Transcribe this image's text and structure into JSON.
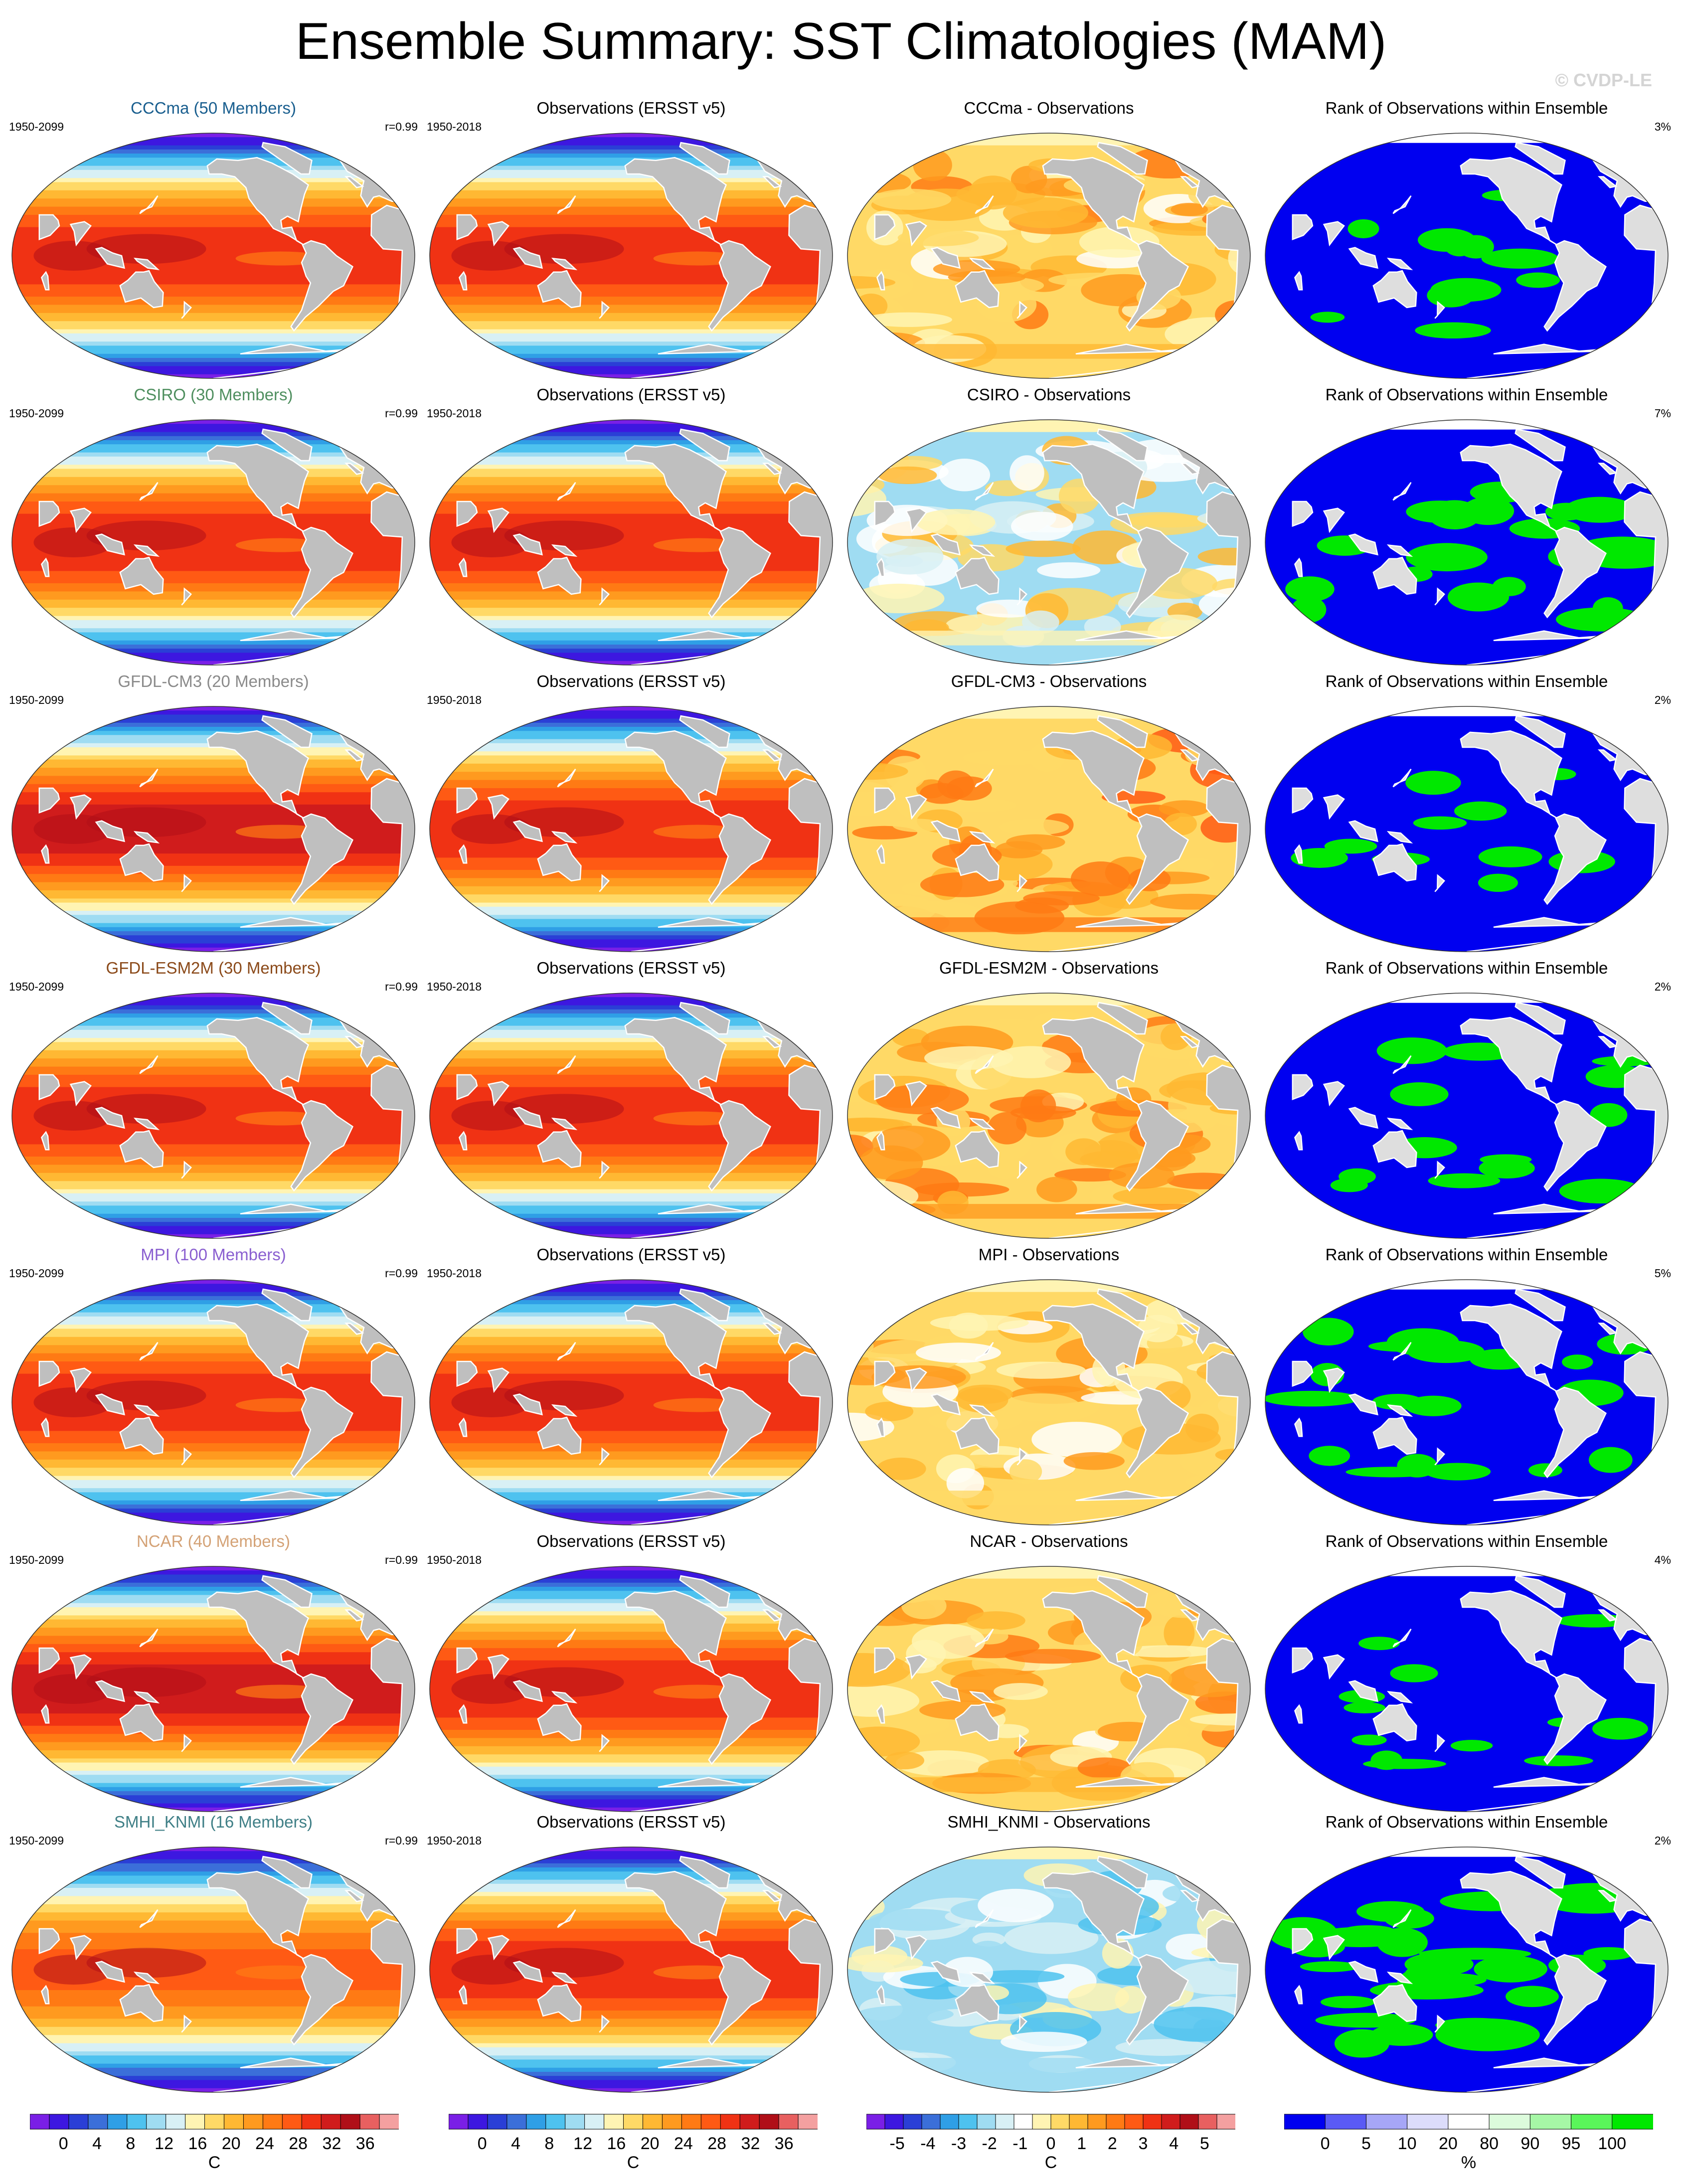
{
  "page": {
    "title": "Ensemble Summary: SST Climatologies (MAM)",
    "credit": "© CVDP-LE"
  },
  "colors": {
    "land": "#bfbfbf",
    "land_light": "#dedede",
    "rank_low": "#0000f0",
    "rank_high": "#00e800"
  },
  "chart_data": [
    {
      "type": "heatmap",
      "description_kind": "model ensemble-mean SST climatology maps",
      "rows": [
        {
          "title": "CCCma (50 Members)",
          "title_color": "#1a5f8f",
          "period": "1950-2099",
          "pattern_corr": "r=0.99",
          "warmth": 1.0
        },
        {
          "title": "CSIRO (30 Members)",
          "title_color": "#4f8f5f",
          "period": "1950-2099",
          "pattern_corr": "r=0.99",
          "warmth": 1.0
        },
        {
          "title": "GFDL-CM3 (20 Members)",
          "title_color": "#8a8a8a",
          "period": "1950-2099",
          "pattern_corr": "",
          "warmth": 1.05
        },
        {
          "title": "GFDL-ESM2M (30 Members)",
          "title_color": "#8b4a1a",
          "period": "1950-2099",
          "pattern_corr": "r=0.99",
          "warmth": 1.0
        },
        {
          "title": "MPI (100 Members)",
          "title_color": "#8a5fd0",
          "period": "1950-2099",
          "pattern_corr": "r=0.99",
          "warmth": 1.0
        },
        {
          "title": "NCAR (40 Members)",
          "title_color": "#d4a276",
          "period": "1950-2099",
          "pattern_corr": "r=0.99",
          "warmth": 1.05
        },
        {
          "title": "SMHI_KNMI (16 Members)",
          "title_color": "#3f7f86",
          "period": "1950-2099",
          "pattern_corr": "r=0.99",
          "warmth": 0.9
        }
      ],
      "units": "C",
      "levels": [
        0,
        4,
        8,
        12,
        16,
        20,
        24,
        28,
        32,
        36
      ]
    },
    {
      "type": "heatmap",
      "description_kind": "observed SST climatology maps",
      "title": "Observations (ERSST v5)",
      "period": "1950-2018",
      "units": "C",
      "levels": [
        0,
        4,
        8,
        12,
        16,
        20,
        24,
        28,
        32,
        36
      ]
    },
    {
      "type": "heatmap",
      "description_kind": "model minus observations difference maps",
      "rows": [
        {
          "title": "CCCma - Observations",
          "mean_bias": 0.6
        },
        {
          "title": "CSIRO - Observations",
          "mean_bias": -0.3
        },
        {
          "title": "GFDL-CM3 - Observations",
          "mean_bias": 1.2
        },
        {
          "title": "GFDL-ESM2M - Observations",
          "mean_bias": 0.8
        },
        {
          "title": "MPI - Observations",
          "mean_bias": 0.2
        },
        {
          "title": "NCAR - Observations",
          "mean_bias": 0.5
        },
        {
          "title": "SMHI_KNMI - Observations",
          "mean_bias": -1.2
        }
      ],
      "units": "C",
      "levels": [
        -5,
        -4,
        -3,
        -2,
        -1,
        0,
        1,
        2,
        3,
        4,
        5
      ]
    },
    {
      "type": "heatmap",
      "description_kind": "rank of observations within ensemble maps",
      "title": "Rank of Observations within Ensemble",
      "rows": [
        {
          "pct_label": "3%",
          "green_fraction": 0.08
        },
        {
          "pct_label": "7%",
          "green_fraction": 0.3
        },
        {
          "pct_label": "2%",
          "green_fraction": 0.06
        },
        {
          "pct_label": "2%",
          "green_fraction": 0.14
        },
        {
          "pct_label": "5%",
          "green_fraction": 0.24
        },
        {
          "pct_label": "4%",
          "green_fraction": 0.1
        },
        {
          "pct_label": "2%",
          "green_fraction": 0.45
        }
      ],
      "units": "%",
      "levels": [
        "0",
        "5",
        "10",
        "20",
        "80",
        "90",
        "95",
        "100"
      ]
    }
  ],
  "colorbars": [
    {
      "labels": [
        "0",
        "4",
        "8",
        "12",
        "16",
        "20",
        "24",
        "28",
        "32",
        "36"
      ],
      "unit": "C",
      "colors": [
        "#7a1fe6",
        "#3d17e0",
        "#2a3fd6",
        "#3b6fd9",
        "#2f9fe6",
        "#4ec2ef",
        "#9fdcf2",
        "#d8f0f5",
        "#fff4b3",
        "#ffd966",
        "#ffb833",
        "#ff9a1f",
        "#ff7a14",
        "#ff5a14",
        "#f03214",
        "#d01c1c",
        "#b00f18",
        "#e86060",
        "#f4a0a0"
      ]
    },
    {
      "labels": [
        "0",
        "4",
        "8",
        "12",
        "16",
        "20",
        "24",
        "28",
        "32",
        "36"
      ],
      "unit": "C",
      "colors": [
        "#7a1fe6",
        "#3d17e0",
        "#2a3fd6",
        "#3b6fd9",
        "#2f9fe6",
        "#4ec2ef",
        "#9fdcf2",
        "#d8f0f5",
        "#fff4b3",
        "#ffd966",
        "#ffb833",
        "#ff9a1f",
        "#ff7a14",
        "#ff5a14",
        "#f03214",
        "#d01c1c",
        "#b00f18",
        "#e86060",
        "#f4a0a0"
      ]
    },
    {
      "labels": [
        "-5",
        "-4",
        "-3",
        "-2",
        "-1",
        "0",
        "1",
        "2",
        "3",
        "4",
        "5"
      ],
      "unit": "C",
      "colors": [
        "#7a1fe6",
        "#3d17e0",
        "#2a3fd6",
        "#3b6fd9",
        "#2f9fe6",
        "#4ec2ef",
        "#9fdcf2",
        "#d8f0f5",
        "#ffffff",
        "#fff4b3",
        "#ffd966",
        "#ffb833",
        "#ff9a1f",
        "#ff7a14",
        "#ff5a14",
        "#f03214",
        "#d01c1c",
        "#b00f18",
        "#e86060",
        "#f4a0a0"
      ]
    },
    {
      "labels": [
        "0",
        "5",
        "10",
        "20",
        "80",
        "90",
        "95",
        "100"
      ],
      "unit": "%",
      "colors": [
        "#0000f0",
        "#5a5af5",
        "#a6a6f7",
        "#dcdcfb",
        "#ffffff",
        "#dcfbdc",
        "#a6f7a6",
        "#5af55a",
        "#00e800"
      ]
    }
  ]
}
